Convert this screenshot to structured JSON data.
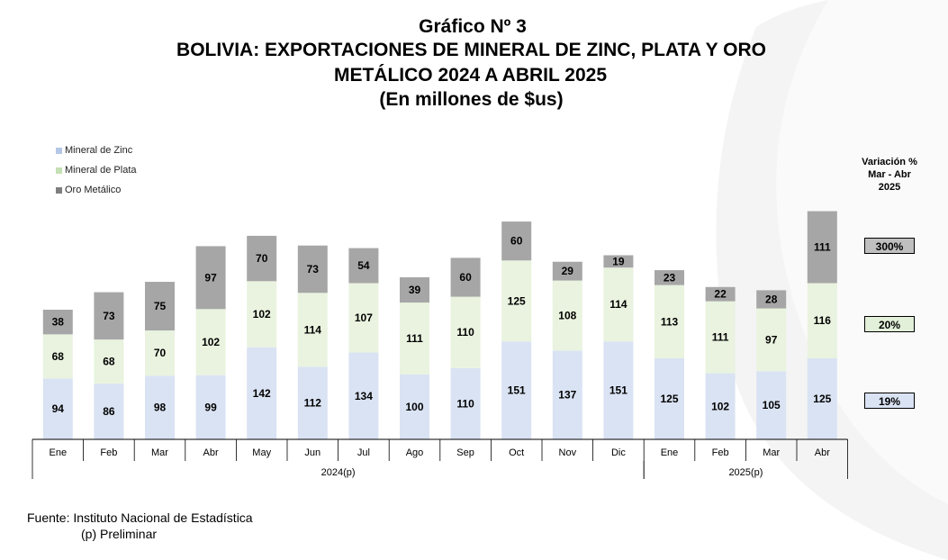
{
  "header": {
    "line1": "Gráfico Nº 3",
    "line2": "BOLIVIA: EXPORTACIONES DE MINERAL DE ZINC, PLATA Y ORO",
    "line3": "METÁLICO 2024 A ABRIL 2025",
    "line4": "(En millones de $us)"
  },
  "colors": {
    "zinc": "#dae3f3",
    "plata": "#e9f3df",
    "oro": "#a6a6a6",
    "oro_box": "#bfbfbf",
    "plata_box": "#e2f0d9",
    "zinc_box": "#dae3f3"
  },
  "chart_data": {
    "type": "bar",
    "stacked": true,
    "categories": [
      "Ene",
      "Feb",
      "Mar",
      "Abr",
      "May",
      "Jun",
      "Jul",
      "Ago",
      "Sep",
      "Oct",
      "Nov",
      "Dic",
      "Ene",
      "Feb",
      "Mar",
      "Abr"
    ],
    "groups": [
      {
        "label": "2024(p)",
        "count": 12
      },
      {
        "label": "2025(p)",
        "count": 4
      }
    ],
    "series": [
      {
        "name": "Mineral de Zinc",
        "values": [
          94,
          86,
          98,
          99,
          142,
          112,
          134,
          100,
          110,
          151,
          137,
          151,
          125,
          102,
          105,
          125
        ]
      },
      {
        "name": "Mineral de Plata",
        "values": [
          68,
          68,
          70,
          102,
          102,
          114,
          107,
          111,
          110,
          125,
          108,
          114,
          113,
          111,
          97,
          116
        ]
      },
      {
        "name": "Oro Metálico",
        "values": [
          38,
          73,
          75,
          97,
          70,
          73,
          54,
          39,
          60,
          60,
          29,
          19,
          23,
          22,
          28,
          111
        ]
      }
    ],
    "ylim": [
      0,
      360
    ],
    "legend_position": "top-left"
  },
  "variation": {
    "title_lines": [
      "Variación %",
      "Mar - Abr",
      "2025"
    ],
    "oro": "300%",
    "plata": "20%",
    "zinc": "19%"
  },
  "footer": {
    "source": "Fuente: Instituto Nacional de Estadística",
    "note": "(p) Preliminar"
  }
}
